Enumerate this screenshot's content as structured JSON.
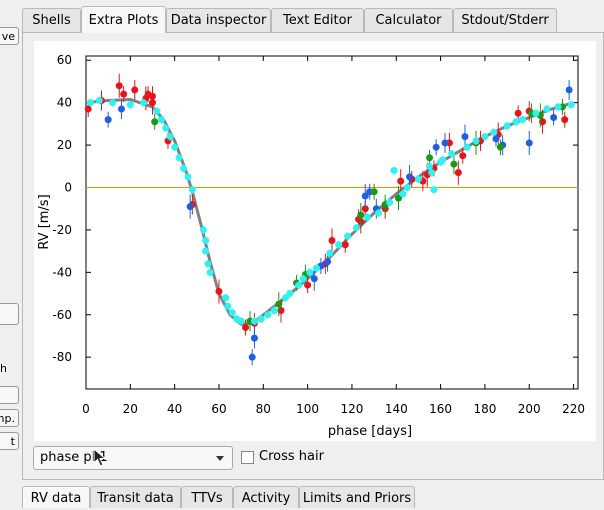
{
  "left_panel": {
    "btn_top": "ve",
    "label_h": "h",
    "btn_mp": "mp.",
    "btn_t": "t"
  },
  "tabs": [
    {
      "label": "Shells",
      "active": false
    },
    {
      "label": "Extra Plots",
      "active": true
    },
    {
      "label": "Data inspector",
      "active": false
    },
    {
      "label": "Text Editor",
      "active": false
    },
    {
      "label": "Calculator",
      "active": false
    },
    {
      "label": "Stdout/Stderr",
      "active": false
    }
  ],
  "plot_controls": {
    "selected": "phase pl 1",
    "crosshair_label": "Cross hair",
    "crosshair_checked": false
  },
  "bottom_tabs": [
    {
      "label": "RV data",
      "active": true
    },
    {
      "label": "Transit data",
      "active": false
    },
    {
      "label": "TTVs",
      "active": false
    },
    {
      "label": "Activity",
      "active": false
    },
    {
      "label": "Limits and Priors",
      "active": false
    }
  ],
  "colors": {
    "red": "#e8141c",
    "blue": "#1f5fe0",
    "green": "#179a17",
    "cyan": "#2ef2f2",
    "model": "#808080",
    "zero_line": "#ff8c00"
  },
  "chart_data": {
    "type": "scatter",
    "xlabel": "phase [days]",
    "ylabel": "RV [m/s]",
    "xlim": [
      0,
      222
    ],
    "ylim": [
      -95,
      62
    ],
    "xticks": [
      0,
      20,
      40,
      60,
      80,
      100,
      120,
      140,
      160,
      180,
      200,
      220
    ],
    "yticks": [
      -80,
      -60,
      -40,
      -20,
      0,
      20,
      40,
      60
    ],
    "zero_line": 0,
    "model": [
      [
        0,
        40
      ],
      [
        10,
        41
      ],
      [
        20,
        41.5
      ],
      [
        30,
        38
      ],
      [
        35,
        32
      ],
      [
        40,
        22
      ],
      [
        45,
        8
      ],
      [
        48,
        -2
      ],
      [
        52,
        -18
      ],
      [
        56,
        -35
      ],
      [
        60,
        -50
      ],
      [
        65,
        -60
      ],
      [
        70,
        -64.5
      ],
      [
        75,
        -64
      ],
      [
        80,
        -60
      ],
      [
        90,
        -52
      ],
      [
        100,
        -43
      ],
      [
        110,
        -33
      ],
      [
        120,
        -22
      ],
      [
        130,
        -12
      ],
      [
        140,
        -3
      ],
      [
        150,
        5
      ],
      [
        160,
        12
      ],
      [
        170,
        18
      ],
      [
        180,
        24
      ],
      [
        190,
        29
      ],
      [
        200,
        33
      ],
      [
        210,
        37
      ],
      [
        220,
        40
      ]
    ],
    "series": [
      {
        "name": "",
        "color_key": "red",
        "points": [
          [
            1,
            37
          ],
          [
            7,
            41
          ],
          [
            15,
            48
          ],
          [
            17,
            44
          ],
          [
            22,
            46
          ],
          [
            27,
            42
          ],
          [
            28,
            44
          ],
          [
            30,
            43
          ],
          [
            30,
            40
          ],
          [
            37,
            22
          ],
          [
            48,
            -8
          ],
          [
            60,
            -49
          ],
          [
            72,
            -66
          ],
          [
            76,
            -64
          ],
          [
            88,
            -58
          ],
          [
            100,
            -46
          ],
          [
            108,
            -36
          ],
          [
            111,
            -25
          ],
          [
            117,
            -27
          ],
          [
            123,
            -15
          ],
          [
            124,
            -16
          ],
          [
            126,
            -10
          ],
          [
            135,
            -10
          ],
          [
            142,
            3
          ],
          [
            147,
            4
          ],
          [
            152,
            3
          ],
          [
            154,
            6
          ],
          [
            157,
            9
          ],
          [
            164,
            21
          ],
          [
            168,
            7
          ],
          [
            170,
            15
          ],
          [
            178,
            22
          ],
          [
            186,
            25
          ],
          [
            195,
            35
          ],
          [
            200,
            36
          ],
          [
            206,
            31
          ],
          [
            216,
            32
          ]
        ]
      },
      {
        "name": "",
        "color_key": "blue",
        "points": [
          [
            10,
            32
          ],
          [
            16,
            37
          ],
          [
            47,
            -9
          ],
          [
            75,
            -80
          ],
          [
            76,
            -71
          ],
          [
            103,
            -43
          ],
          [
            106,
            -37
          ],
          [
            109,
            -35
          ],
          [
            126,
            -4
          ],
          [
            128,
            -2
          ],
          [
            131,
            -10
          ],
          [
            146,
            5
          ],
          [
            158,
            19
          ],
          [
            162,
            21
          ],
          [
            171,
            24
          ],
          [
            185,
            23
          ],
          [
            188,
            20
          ],
          [
            200,
            21
          ],
          [
            211,
            33
          ],
          [
            218,
            46
          ]
        ]
      },
      {
        "name": "",
        "color_key": "green",
        "points": [
          [
            31,
            31
          ],
          [
            74,
            -63
          ],
          [
            87,
            -55
          ],
          [
            95,
            -45
          ],
          [
            99,
            -41
          ],
          [
            124,
            -13
          ],
          [
            130,
            -2
          ],
          [
            135,
            -8
          ],
          [
            141,
            -5
          ],
          [
            155,
            14
          ],
          [
            166,
            11
          ],
          [
            176,
            21
          ],
          [
            187,
            19
          ],
          [
            201,
            35
          ],
          [
            205,
            34
          ],
          [
            215,
            38
          ]
        ]
      },
      {
        "name": "",
        "color_key": "cyan",
        "points": [
          [
            2,
            40
          ],
          [
            6,
            41
          ],
          [
            12,
            40
          ],
          [
            20,
            39
          ],
          [
            26,
            40
          ],
          [
            32,
            36
          ],
          [
            34,
            32
          ],
          [
            36,
            28
          ],
          [
            38,
            24
          ],
          [
            40,
            19
          ],
          [
            42,
            14
          ],
          [
            44,
            9
          ],
          [
            46,
            5
          ],
          [
            48,
            -1
          ],
          [
            53,
            -20
          ],
          [
            54,
            -25
          ],
          [
            54,
            -30
          ],
          [
            55,
            -36
          ],
          [
            56,
            -40
          ],
          [
            63,
            -52
          ],
          [
            64,
            -56
          ],
          [
            66,
            -59
          ],
          [
            68,
            -62
          ],
          [
            70,
            -63
          ],
          [
            76,
            -63
          ],
          [
            79,
            -62
          ],
          [
            82,
            -60
          ],
          [
            85,
            -58
          ],
          [
            90,
            -52
          ],
          [
            92,
            -50
          ],
          [
            96,
            -46
          ],
          [
            98,
            -43
          ],
          [
            101,
            -40
          ],
          [
            104,
            -38
          ],
          [
            110,
            -31
          ],
          [
            114,
            -27
          ],
          [
            118,
            -23
          ],
          [
            122,
            -19
          ],
          [
            127,
            -14
          ],
          [
            132,
            -12
          ],
          [
            137,
            -7
          ],
          [
            139,
            8
          ],
          [
            143,
            -3
          ],
          [
            145,
            0
          ],
          [
            150,
            4
          ],
          [
            155,
            10
          ],
          [
            156,
            7
          ],
          [
            157,
            -1
          ],
          [
            160,
            12
          ],
          [
            161,
            13
          ],
          [
            165,
            16
          ],
          [
            172,
            19
          ],
          [
            176,
            22
          ],
          [
            180,
            24
          ],
          [
            184,
            26
          ],
          [
            190,
            29
          ],
          [
            194,
            31
          ],
          [
            197,
            32
          ],
          [
            203,
            35
          ],
          [
            208,
            37
          ],
          [
            213,
            38
          ],
          [
            219,
            39
          ]
        ]
      }
    ]
  }
}
